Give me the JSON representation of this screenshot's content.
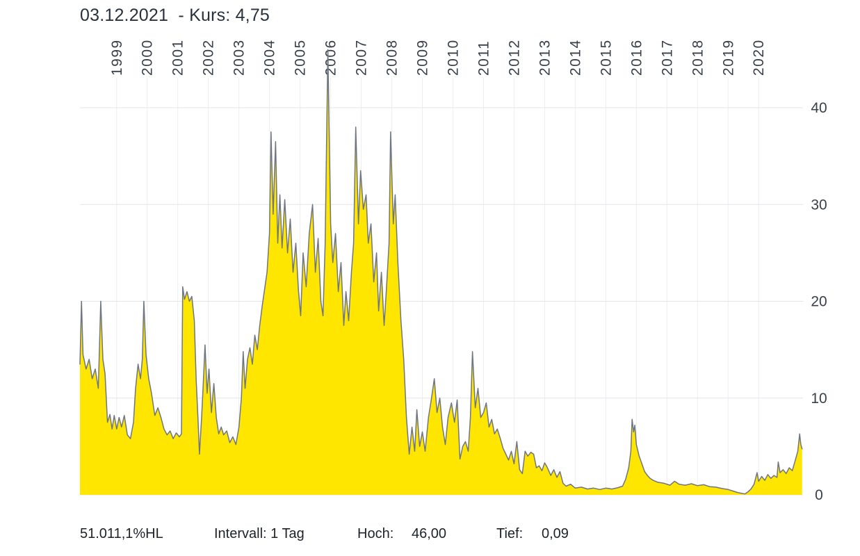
{
  "header": {
    "title": "03.12.2021  - Kurs: 4,75"
  },
  "footer": {
    "change": "51.011,1%HL",
    "interval": "Intervall: 1 Tag",
    "high_label": "Hoch:",
    "high_value": "46,00",
    "low_label": "Tief:",
    "low_value": "0,09"
  },
  "chart_data": {
    "type": "area",
    "title": "03.12.2021 - Kurs: 4,75",
    "date": "03.12.2021",
    "last": 4.75,
    "high": 46.0,
    "low": 0.09,
    "interval": "1 Tag",
    "xlabel": "",
    "ylabel": "Kurs",
    "xlim": [
      1998.3,
      2021.95
    ],
    "ylim": [
      0,
      46
    ],
    "y_ticks": [
      0,
      10,
      20,
      30,
      40
    ],
    "x_tick_years": [
      "1999",
      "2000",
      "2001",
      "2002",
      "2003",
      "2004",
      "2005",
      "2006",
      "2007",
      "2008",
      "2009",
      "2010",
      "2011",
      "2012",
      "2013",
      "2014",
      "2015",
      "2016",
      "2017",
      "2018",
      "2019",
      "2020"
    ],
    "grid": true,
    "legend": "none",
    "colors": {
      "area": "#ffe600",
      "line": "#6f7681",
      "grid_h": "#e3e6ea",
      "grid_v": "#eceef2",
      "tick_text": "#39404a"
    },
    "series": [
      {
        "name": "Kurs",
        "points": [
          [
            1998.3,
            13.5
          ],
          [
            1998.35,
            20.0
          ],
          [
            1998.4,
            14.5
          ],
          [
            1998.5,
            13.0
          ],
          [
            1998.6,
            14.0
          ],
          [
            1998.7,
            12.0
          ],
          [
            1998.8,
            13.0
          ],
          [
            1998.9,
            11.0
          ],
          [
            1998.98,
            20.0
          ],
          [
            1999.05,
            14.0
          ],
          [
            1999.12,
            12.5
          ],
          [
            1999.2,
            7.5
          ],
          [
            1999.28,
            8.3
          ],
          [
            1999.35,
            6.8
          ],
          [
            1999.42,
            8.2
          ],
          [
            1999.5,
            6.8
          ],
          [
            1999.58,
            8.0
          ],
          [
            1999.66,
            7.0
          ],
          [
            1999.75,
            8.2
          ],
          [
            1999.85,
            6.2
          ],
          [
            1999.95,
            5.8
          ],
          [
            2000.05,
            7.5
          ],
          [
            2000.12,
            11.0
          ],
          [
            2000.2,
            13.5
          ],
          [
            2000.28,
            12.0
          ],
          [
            2000.34,
            14.0
          ],
          [
            2000.39,
            20.0
          ],
          [
            2000.46,
            14.5
          ],
          [
            2000.55,
            12.0
          ],
          [
            2000.64,
            10.5
          ],
          [
            2000.75,
            8.2
          ],
          [
            2000.85,
            9.0
          ],
          [
            2000.95,
            8.0
          ],
          [
            2001.05,
            6.8
          ],
          [
            2001.15,
            6.2
          ],
          [
            2001.25,
            6.6
          ],
          [
            2001.35,
            5.8
          ],
          [
            2001.45,
            6.4
          ],
          [
            2001.55,
            6.0
          ],
          [
            2001.62,
            6.3
          ],
          [
            2001.66,
            21.5
          ],
          [
            2001.72,
            20.2
          ],
          [
            2001.8,
            21.0
          ],
          [
            2001.88,
            20.0
          ],
          [
            2001.96,
            20.5
          ],
          [
            2002.04,
            18.0
          ],
          [
            2002.1,
            12.0
          ],
          [
            2002.16,
            8.0
          ],
          [
            2002.21,
            4.2
          ],
          [
            2002.28,
            8.0
          ],
          [
            2002.34,
            12.0
          ],
          [
            2002.39,
            15.5
          ],
          [
            2002.46,
            10.5
          ],
          [
            2002.52,
            13.0
          ],
          [
            2002.6,
            8.5
          ],
          [
            2002.68,
            11.5
          ],
          [
            2002.76,
            8.0
          ],
          [
            2002.84,
            6.3
          ],
          [
            2002.92,
            7.0
          ],
          [
            2003.0,
            6.2
          ],
          [
            2003.1,
            6.6
          ],
          [
            2003.2,
            5.4
          ],
          [
            2003.3,
            6.0
          ],
          [
            2003.4,
            5.2
          ],
          [
            2003.5,
            7.0
          ],
          [
            2003.58,
            10.0
          ],
          [
            2003.64,
            14.8
          ],
          [
            2003.7,
            11.0
          ],
          [
            2003.78,
            14.0
          ],
          [
            2003.86,
            15.2
          ],
          [
            2003.94,
            13.5
          ],
          [
            2004.02,
            16.5
          ],
          [
            2004.1,
            15.0
          ],
          [
            2004.18,
            17.5
          ],
          [
            2004.26,
            19.5
          ],
          [
            2004.42,
            23.0
          ],
          [
            2004.5,
            27.0
          ],
          [
            2004.55,
            37.5
          ],
          [
            2004.62,
            29.0
          ],
          [
            2004.7,
            36.5
          ],
          [
            2004.77,
            26.0
          ],
          [
            2004.84,
            31.0
          ],
          [
            2004.91,
            25.5
          ],
          [
            2005.0,
            30.5
          ],
          [
            2005.09,
            25.0
          ],
          [
            2005.18,
            28.5
          ],
          [
            2005.27,
            23.0
          ],
          [
            2005.36,
            26.0
          ],
          [
            2005.45,
            21.0
          ],
          [
            2005.52,
            18.5
          ],
          [
            2005.6,
            25.0
          ],
          [
            2005.7,
            21.5
          ],
          [
            2005.8,
            27.0
          ],
          [
            2005.91,
            30.0
          ],
          [
            2006.0,
            23.0
          ],
          [
            2006.09,
            26.5
          ],
          [
            2006.18,
            20.0
          ],
          [
            2006.25,
            18.5
          ],
          [
            2006.32,
            26.0
          ],
          [
            2006.41,
            46.0
          ],
          [
            2006.5,
            28.0
          ],
          [
            2006.57,
            24.0
          ],
          [
            2006.66,
            27.0
          ],
          [
            2006.75,
            21.0
          ],
          [
            2006.84,
            24.0
          ],
          [
            2006.93,
            17.5
          ],
          [
            2007.0,
            21.0
          ],
          [
            2007.09,
            18.0
          ],
          [
            2007.18,
            23.0
          ],
          [
            2007.25,
            26.0
          ],
          [
            2007.32,
            38.0
          ],
          [
            2007.41,
            28.0
          ],
          [
            2007.48,
            33.5
          ],
          [
            2007.57,
            29.5
          ],
          [
            2007.66,
            31.0
          ],
          [
            2007.73,
            26.0
          ],
          [
            2007.82,
            28.0
          ],
          [
            2007.91,
            22.0
          ],
          [
            2008.0,
            25.0
          ],
          [
            2008.07,
            19.0
          ],
          [
            2008.16,
            23.0
          ],
          [
            2008.25,
            17.5
          ],
          [
            2008.32,
            21.0
          ],
          [
            2008.41,
            26.0
          ],
          [
            2008.46,
            37.5
          ],
          [
            2008.55,
            28.0
          ],
          [
            2008.61,
            31.0
          ],
          [
            2008.7,
            24.0
          ],
          [
            2008.8,
            18.0
          ],
          [
            2008.89,
            14.0
          ],
          [
            2008.98,
            8.0
          ],
          [
            2009.07,
            4.2
          ],
          [
            2009.16,
            7.0
          ],
          [
            2009.25,
            4.5
          ],
          [
            2009.32,
            8.8
          ],
          [
            2009.41,
            5.0
          ],
          [
            2009.5,
            6.5
          ],
          [
            2009.59,
            4.5
          ],
          [
            2009.7,
            8.0
          ],
          [
            2009.8,
            10.0
          ],
          [
            2009.89,
            12.0
          ],
          [
            2009.98,
            8.5
          ],
          [
            2010.07,
            10.0
          ],
          [
            2010.16,
            7.0
          ],
          [
            2010.25,
            5.2
          ],
          [
            2010.34,
            8.0
          ],
          [
            2010.45,
            9.5
          ],
          [
            2010.55,
            7.5
          ],
          [
            2010.64,
            9.8
          ],
          [
            2010.73,
            3.7
          ],
          [
            2010.82,
            5.0
          ],
          [
            2010.91,
            5.5
          ],
          [
            2011.0,
            4.5
          ],
          [
            2011.07,
            8.0
          ],
          [
            2011.14,
            14.8
          ],
          [
            2011.23,
            9.0
          ],
          [
            2011.32,
            11.0
          ],
          [
            2011.41,
            8.0
          ],
          [
            2011.5,
            8.5
          ],
          [
            2011.59,
            9.5
          ],
          [
            2011.68,
            7.0
          ],
          [
            2011.77,
            7.8
          ],
          [
            2011.86,
            6.3
          ],
          [
            2011.95,
            6.8
          ],
          [
            2012.05,
            5.8
          ],
          [
            2012.14,
            4.8
          ],
          [
            2012.23,
            4.2
          ],
          [
            2012.32,
            3.6
          ],
          [
            2012.41,
            4.5
          ],
          [
            2012.5,
            3.2
          ],
          [
            2012.59,
            5.5
          ],
          [
            2012.68,
            2.6
          ],
          [
            2012.77,
            2.2
          ],
          [
            2012.86,
            4.5
          ],
          [
            2012.95,
            4.0
          ],
          [
            2013.05,
            4.4
          ],
          [
            2013.14,
            4.2
          ],
          [
            2013.23,
            2.8
          ],
          [
            2013.32,
            3.0
          ],
          [
            2013.41,
            2.5
          ],
          [
            2013.5,
            3.3
          ],
          [
            2013.59,
            2.8
          ],
          [
            2013.7,
            2.0
          ],
          [
            2013.8,
            2.6
          ],
          [
            2013.9,
            1.8
          ],
          [
            2014.0,
            2.4
          ],
          [
            2014.1,
            1.2
          ],
          [
            2014.2,
            0.9
          ],
          [
            2014.35,
            1.1
          ],
          [
            2014.5,
            0.7
          ],
          [
            2014.7,
            0.8
          ],
          [
            2014.9,
            0.6
          ],
          [
            2015.1,
            0.7
          ],
          [
            2015.3,
            0.55
          ],
          [
            2015.5,
            0.7
          ],
          [
            2015.7,
            0.6
          ],
          [
            2015.9,
            0.75
          ],
          [
            2016.05,
            0.9
          ],
          [
            2016.15,
            1.6
          ],
          [
            2016.25,
            2.8
          ],
          [
            2016.32,
            4.5
          ],
          [
            2016.36,
            7.8
          ],
          [
            2016.41,
            6.5
          ],
          [
            2016.45,
            7.2
          ],
          [
            2016.5,
            5.2
          ],
          [
            2016.59,
            4.0
          ],
          [
            2016.68,
            3.2
          ],
          [
            2016.77,
            2.4
          ],
          [
            2016.86,
            2.0
          ],
          [
            2016.95,
            1.7
          ],
          [
            2017.05,
            1.5
          ],
          [
            2017.2,
            1.3
          ],
          [
            2017.4,
            1.2
          ],
          [
            2017.6,
            1.0
          ],
          [
            2017.75,
            1.4
          ],
          [
            2017.9,
            1.1
          ],
          [
            2018.1,
            1.0
          ],
          [
            2018.3,
            1.15
          ],
          [
            2018.5,
            0.95
          ],
          [
            2018.7,
            1.05
          ],
          [
            2018.9,
            0.85
          ],
          [
            2019.1,
            0.8
          ],
          [
            2019.3,
            0.65
          ],
          [
            2019.5,
            0.55
          ],
          [
            2019.65,
            0.4
          ],
          [
            2019.8,
            0.25
          ],
          [
            2019.95,
            0.15
          ],
          [
            2020.05,
            0.09
          ],
          [
            2020.15,
            0.3
          ],
          [
            2020.25,
            0.6
          ],
          [
            2020.35,
            1.1
          ],
          [
            2020.45,
            2.3
          ],
          [
            2020.5,
            1.4
          ],
          [
            2020.6,
            1.9
          ],
          [
            2020.7,
            1.5
          ],
          [
            2020.8,
            2.1
          ],
          [
            2020.9,
            1.7
          ],
          [
            2021.0,
            2.0
          ],
          [
            2021.1,
            1.8
          ],
          [
            2021.14,
            3.4
          ],
          [
            2021.2,
            2.3
          ],
          [
            2021.3,
            2.6
          ],
          [
            2021.4,
            2.2
          ],
          [
            2021.5,
            2.8
          ],
          [
            2021.6,
            2.5
          ],
          [
            2021.7,
            3.6
          ],
          [
            2021.78,
            4.5
          ],
          [
            2021.84,
            6.3
          ],
          [
            2021.88,
            5.2
          ],
          [
            2021.92,
            4.75
          ]
        ]
      }
    ]
  }
}
